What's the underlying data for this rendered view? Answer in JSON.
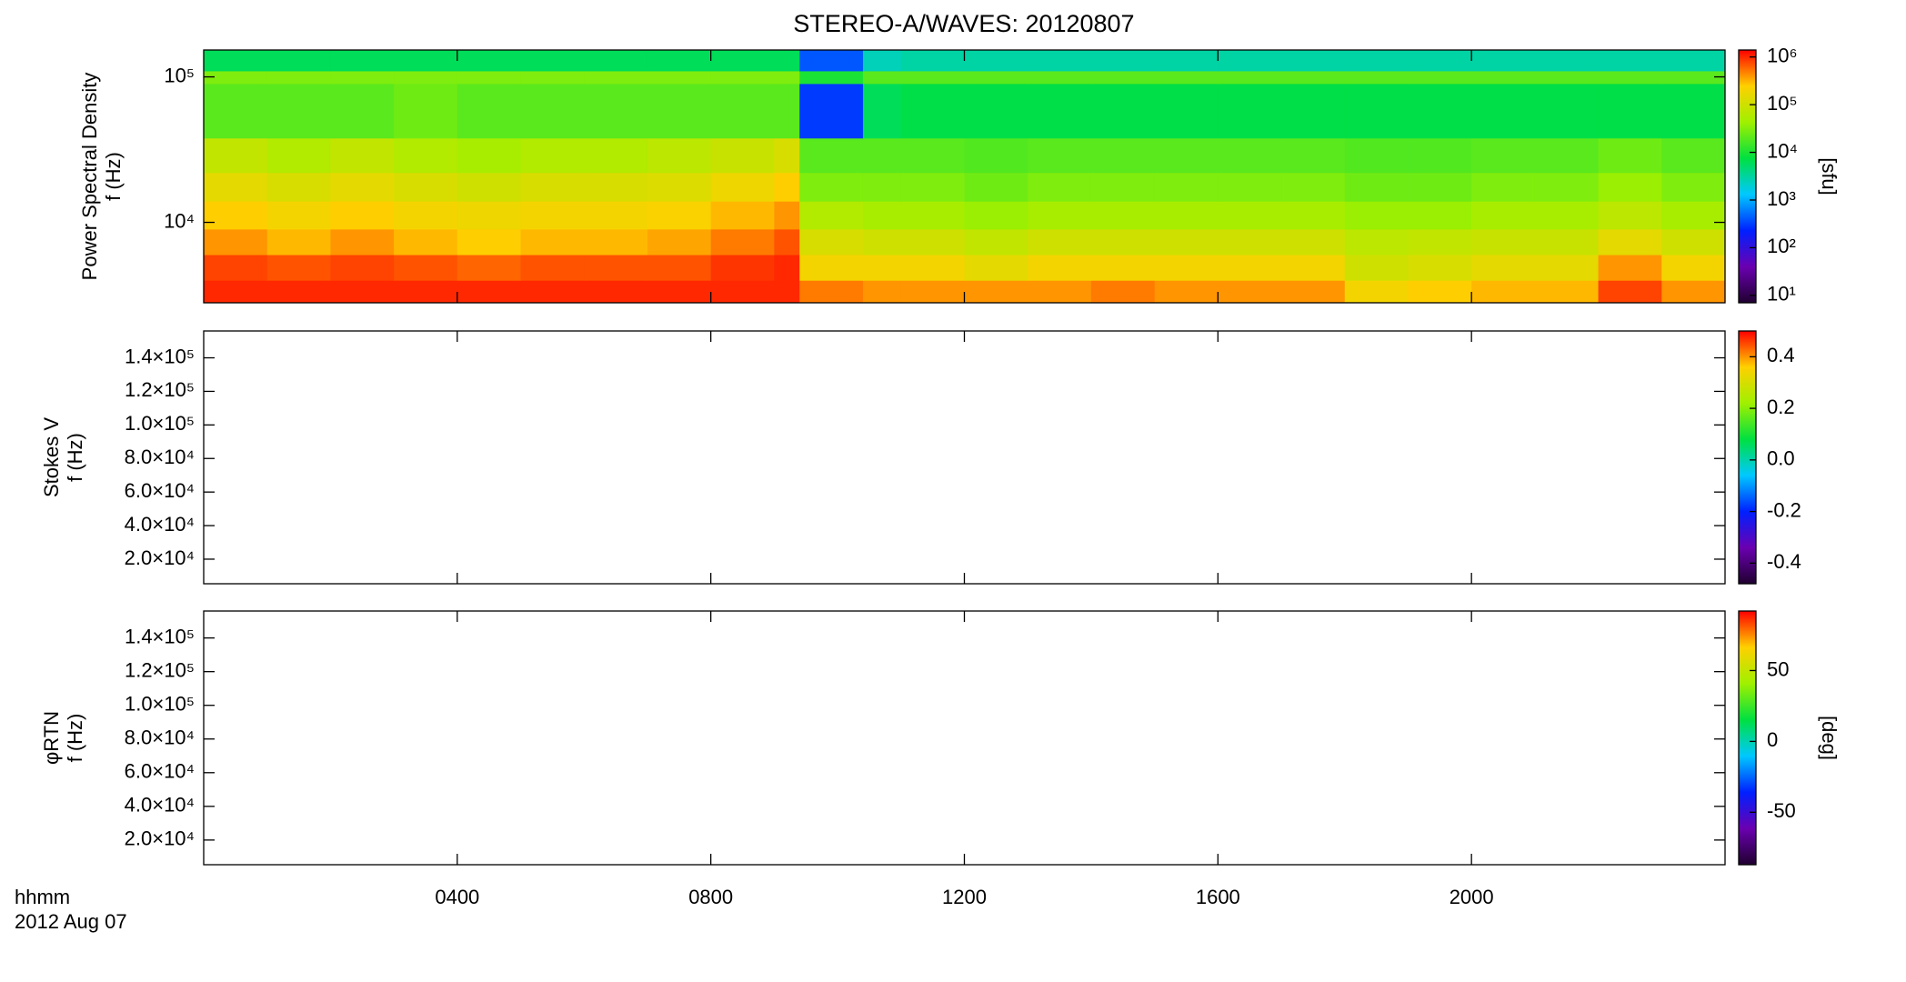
{
  "title": "STEREO-A/WAVES: 20120807",
  "x_axis": {
    "label": "hhmm",
    "date": "2012 Aug 07",
    "xlim": [
      0,
      24
    ],
    "xticks": [
      {
        "value": 4,
        "label": "0400"
      },
      {
        "value": 8,
        "label": "0800"
      },
      {
        "value": 12,
        "label": "1200"
      },
      {
        "value": 16,
        "label": "1600"
      },
      {
        "value": 20,
        "label": "2000"
      }
    ]
  },
  "colormap": [
    "#200030",
    "#6a00b0",
    "#0020ff",
    "#00c8ff",
    "#00e040",
    "#a0f000",
    "#ffd000",
    "#ff0000"
  ],
  "chart_data": [
    {
      "type": "spectrogram",
      "ylabel": [
        "Power Spectral Density",
        "f (Hz)"
      ],
      "yscale": "log",
      "ylim": [
        2800,
        153000
      ],
      "yticks": [
        {
          "value": 10000,
          "label": "10⁴"
        },
        {
          "value": 100000,
          "label": "10⁵"
        }
      ],
      "zscale": "log",
      "zlim": [
        7,
        1400000
      ],
      "zlabel": "[sfu]",
      "zticks": [
        {
          "value": 10,
          "label": "10¹"
        },
        {
          "value": 100,
          "label": "10²"
        },
        {
          "value": 1000,
          "label": "10³"
        },
        {
          "value": 10000,
          "label": "10⁴"
        },
        {
          "value": 100000,
          "label": "10⁵"
        },
        {
          "value": 1000000,
          "label": "10⁶"
        }
      ],
      "x_bins": [
        0,
        1,
        2,
        3,
        4,
        5,
        6,
        7,
        8,
        9,
        9.4,
        10.4,
        11,
        12,
        13,
        14,
        15,
        16,
        17,
        18,
        19,
        20,
        21,
        22,
        23,
        24
      ],
      "y_bins": [
        2800,
        4000,
        6000,
        9000,
        14000,
        22000,
        38000,
        90000,
        110000,
        153000
      ],
      "values": [
        [
          1000000,
          1000000,
          1000000,
          1000000,
          1000000,
          1000000,
          1000000,
          1000000,
          1000000,
          1000000,
          500000,
          400000,
          400000,
          400000,
          400000,
          500000,
          400000,
          400000,
          400000,
          200000,
          250000,
          300000,
          300000,
          800000,
          400000
        ],
        [
          800000,
          700000,
          800000,
          700000,
          600000,
          700000,
          700000,
          700000,
          900000,
          1000000,
          200000,
          200000,
          200000,
          150000,
          200000,
          200000,
          200000,
          200000,
          200000,
          100000,
          120000,
          150000,
          150000,
          400000,
          200000
        ],
        [
          400000,
          300000,
          400000,
          300000,
          250000,
          300000,
          300000,
          350000,
          500000,
          700000,
          120000,
          100000,
          100000,
          80000,
          100000,
          100000,
          100000,
          100000,
          100000,
          70000,
          80000,
          90000,
          90000,
          150000,
          100000
        ],
        [
          250000,
          200000,
          250000,
          200000,
          180000,
          200000,
          200000,
          220000,
          300000,
          400000,
          60000,
          50000,
          50000,
          40000,
          50000,
          50000,
          50000,
          50000,
          50000,
          40000,
          40000,
          50000,
          50000,
          70000,
          50000
        ],
        [
          150000,
          120000,
          150000,
          120000,
          100000,
          120000,
          120000,
          130000,
          180000,
          250000,
          30000,
          30000,
          30000,
          25000,
          30000,
          30000,
          30000,
          30000,
          30000,
          25000,
          25000,
          30000,
          30000,
          40000,
          30000
        ],
        [
          80000,
          60000,
          80000,
          60000,
          50000,
          60000,
          60000,
          70000,
          90000,
          120000,
          20000,
          20000,
          20000,
          18000,
          20000,
          20000,
          20000,
          20000,
          20000,
          18000,
          18000,
          20000,
          20000,
          25000,
          20000
        ],
        [
          20000,
          20000,
          20000,
          25000,
          20000,
          20000,
          20000,
          20000,
          20000,
          20000,
          300,
          6000,
          7000,
          7000,
          7000,
          7000,
          7000,
          7000,
          7000,
          7000,
          7000,
          7000,
          7000,
          7000,
          7000
        ],
        [
          30000,
          30000,
          30000,
          30000,
          30000,
          30000,
          30000,
          30000,
          30000,
          30000,
          10000,
          20000,
          20000,
          20000,
          20000,
          20000,
          20000,
          20000,
          20000,
          20000,
          20000,
          20000,
          20000,
          20000,
          20000
        ],
        [
          6000,
          6000,
          6000,
          6000,
          6000,
          6000,
          6000,
          6000,
          6000,
          6000,
          400,
          2500,
          3000,
          3000,
          3000,
          3000,
          3000,
          3000,
          3000,
          3000,
          3000,
          3000,
          3000,
          3000,
          3000
        ]
      ]
    },
    {
      "type": "spectrogram",
      "ylabel": [
        "Stokes V",
        "f (Hz)"
      ],
      "yscale": "linear",
      "ylim": [
        5350,
        156000
      ],
      "yticks": [
        {
          "value": 20000,
          "label": "2.0×10⁴"
        },
        {
          "value": 40000,
          "label": "4.0×10⁴"
        },
        {
          "value": 60000,
          "label": "6.0×10⁴"
        },
        {
          "value": 80000,
          "label": "8.0×10⁴"
        },
        {
          "value": 100000,
          "label": "1.0×10⁵"
        },
        {
          "value": 120000,
          "label": "1.2×10⁵"
        },
        {
          "value": 140000,
          "label": "1.4×10⁵"
        }
      ],
      "zscale": "linear",
      "zlim": [
        -0.48,
        0.5
      ],
      "zticks": [
        -0.4,
        -0.2,
        {
          "value": 0,
          "label": "0.0"
        },
        0.2,
        0.4
      ]
    },
    {
      "type": "spectrogram",
      "ylabel": [
        "φRTN",
        "f (Hz)"
      ],
      "yscale": "linear",
      "ylim": [
        5350,
        156000
      ],
      "yticks": [
        {
          "value": 20000,
          "label": "2.0×10⁴"
        },
        {
          "value": 40000,
          "label": "4.0×10⁴"
        },
        {
          "value": 60000,
          "label": "6.0×10⁴"
        },
        {
          "value": 80000,
          "label": "8.0×10⁴"
        },
        {
          "value": 100000,
          "label": "1.0×10⁵"
        },
        {
          "value": 120000,
          "label": "1.2×10⁵"
        },
        {
          "value": 140000,
          "label": "1.4×10⁵"
        }
      ],
      "zscale": "linear",
      "zlim": [
        -87,
        92
      ],
      "zlabel": "[deg]",
      "zticks": [
        -50,
        0,
        50
      ]
    }
  ]
}
